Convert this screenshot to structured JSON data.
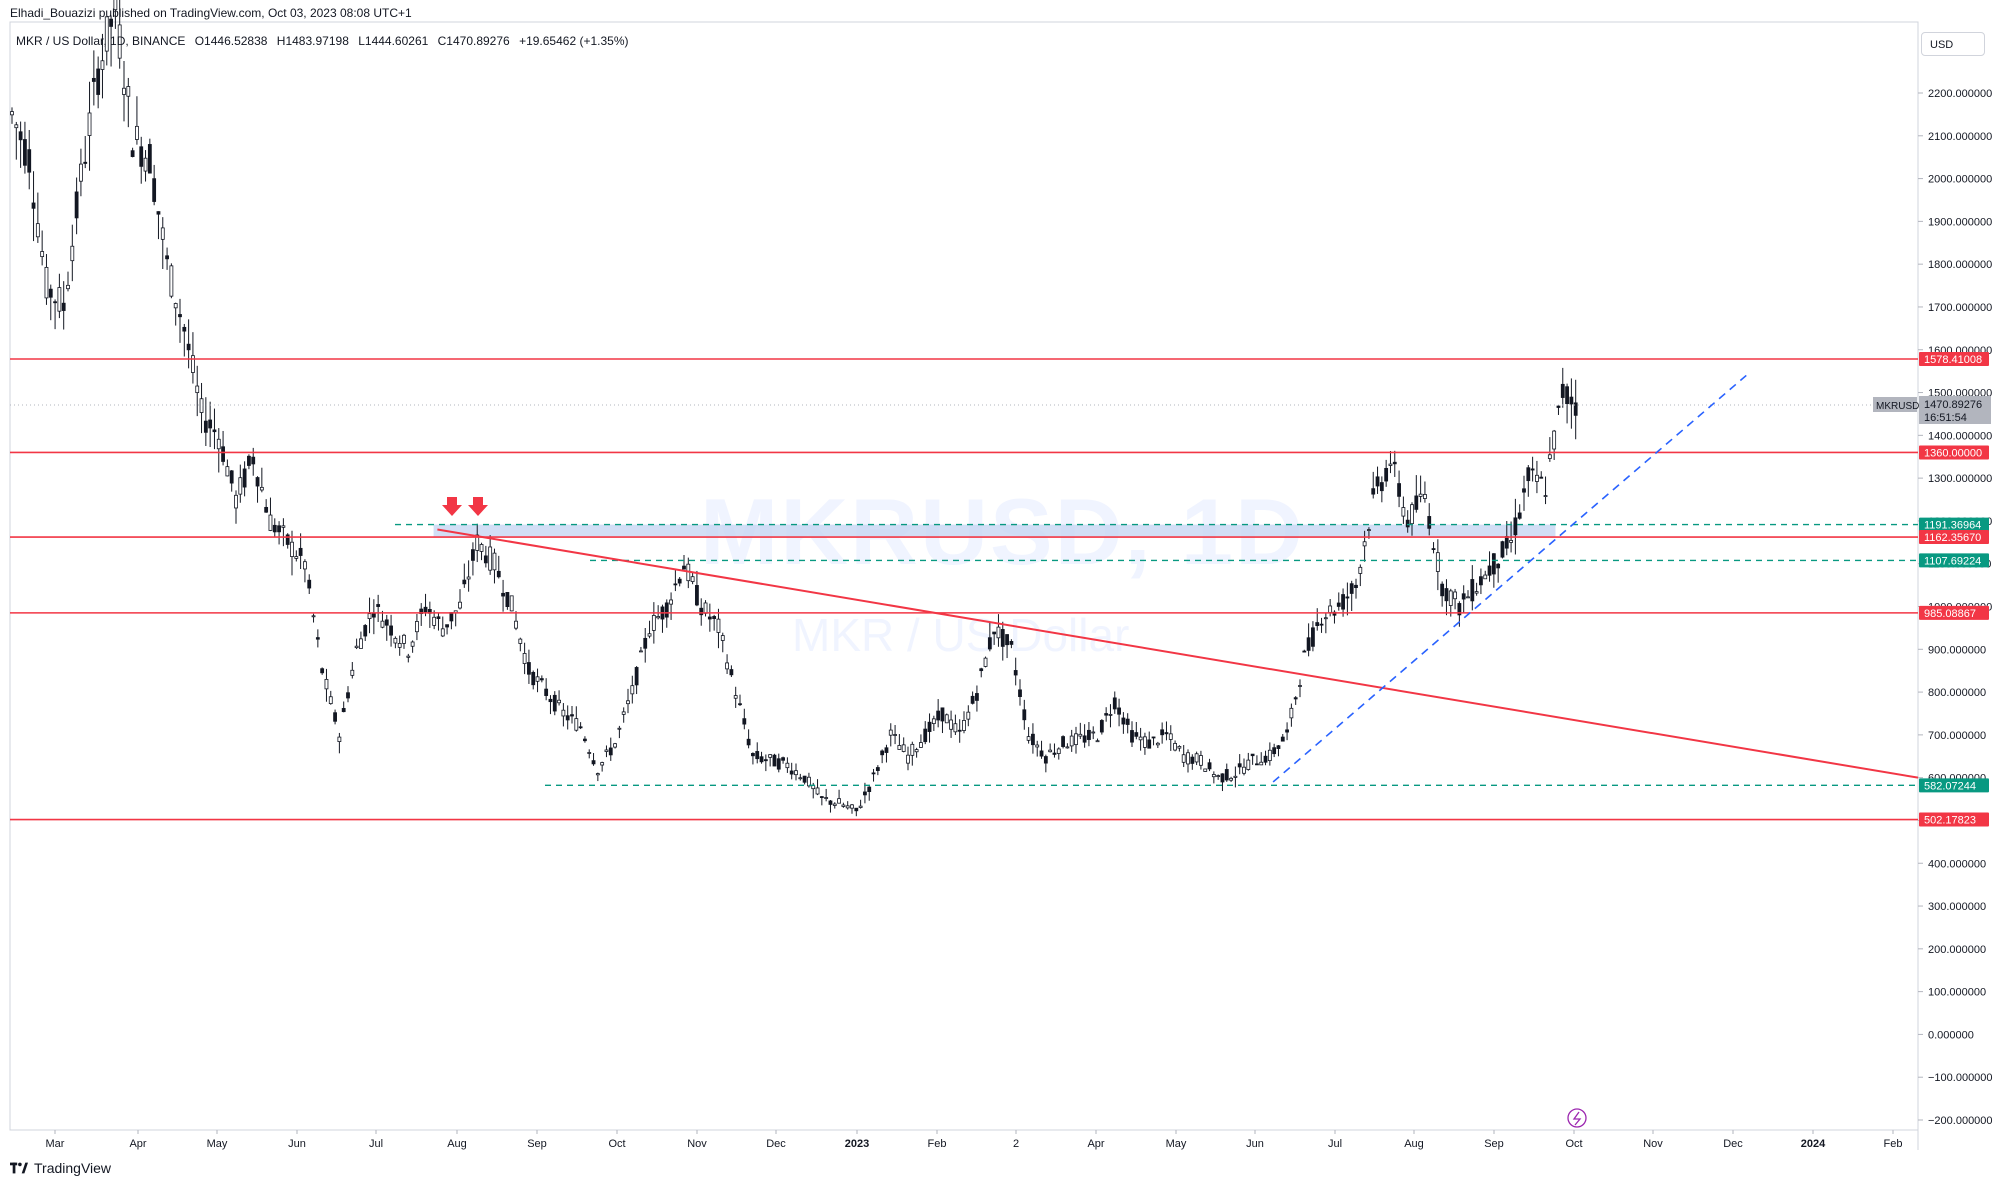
{
  "header": {
    "publish_line": "Elhadi_Bouazizi published on TradingView.com, Oct 03, 2023 08:08 UTC+1"
  },
  "ohlc": {
    "symbol": "MKR / US Dollar, 1D, BINANCE",
    "open": "O1446.52838",
    "high": "H1483.97198",
    "low": "L1444.60261",
    "close": "C1470.89276",
    "change": "+19.65462 (+1.35%)"
  },
  "currency_button": "USD",
  "watermark": {
    "main": "MKRUSD, 1D",
    "sub": "MKR / US Dollar"
  },
  "footer": {
    "brand": "TradingView"
  },
  "colors": {
    "resistance_line": "#f23645",
    "support_dashed": "#089981",
    "trend_dashed": "#2962ff",
    "zone_fill": "#c7d6f3",
    "arrow": "#f23645",
    "axis_text": "#131722"
  },
  "chart_data": {
    "type": "candlestick",
    "symbol": "MKRUSD",
    "interval": "1D",
    "y_axis": {
      "ticks": [
        "2200.000000",
        "2100.000000",
        "2000.000000",
        "1900.000000",
        "1800.000000",
        "1700.000000",
        "1600.000000",
        "1500.000000",
        "1400.000000",
        "1300.000000",
        "1200.000000",
        "1100.000000",
        "1000.000000",
        "900.000000",
        "800.000000",
        "700.000000",
        "600.000000",
        "500.000000",
        "400.000000",
        "300.000000",
        "200.000000",
        "100.000000",
        "0.000000",
        "−100.000000",
        "−200.000000"
      ],
      "tick_values": [
        2200,
        2100,
        2000,
        1900,
        1800,
        1700,
        1600,
        1500,
        1400,
        1300,
        1200,
        1100,
        1000,
        900,
        800,
        700,
        600,
        500,
        400,
        300,
        200,
        100,
        0,
        -100,
        -200
      ],
      "range": [
        -200,
        2400
      ]
    },
    "x_axis": {
      "labels": [
        "Mar",
        "Apr",
        "May",
        "Jun",
        "Jul",
        "Aug",
        "Sep",
        "Oct",
        "Nov",
        "Dec",
        "2023",
        "Feb",
        "2",
        "Apr",
        "May",
        "Jun",
        "Jul",
        "Aug",
        "Sep",
        "Oct",
        "Nov",
        "Dec",
        "2024",
        "Feb"
      ],
      "bold": [
        "2023",
        "2024"
      ]
    },
    "price_levels": [
      {
        "label": "1578.41008",
        "value": 1578.41008,
        "style": "solid",
        "color": "#f23645"
      },
      {
        "label": "1360.00000",
        "value": 1360.0,
        "style": "solid",
        "color": "#f23645"
      },
      {
        "label": "1191.36964",
        "value": 1191.36964,
        "style": "dashed",
        "color": "#089981"
      },
      {
        "label": "1162.35670",
        "value": 1162.3567,
        "style": "solid",
        "color": "#f23645"
      },
      {
        "label": "1107.69224",
        "value": 1107.69224,
        "style": "dashed",
        "color": "#089981"
      },
      {
        "label": "985.08867",
        "value": 985.08867,
        "style": "solid",
        "color": "#f23645"
      },
      {
        "label": "582.07244",
        "value": 582.07244,
        "style": "dashed",
        "color": "#089981"
      },
      {
        "label": "502.17823",
        "value": 502.17823,
        "style": "solid",
        "color": "#f23645"
      }
    ],
    "current_price": {
      "symbol": "MKRUSD",
      "label": "1470.89276",
      "value": 1470.89276,
      "countdown": "16:51:54"
    },
    "close_path": [
      [
        0,
        2150
      ],
      [
        1,
        2050
      ],
      [
        2,
        1750
      ],
      [
        3,
        1700
      ],
      [
        4,
        2000
      ],
      [
        5,
        2250
      ],
      [
        6,
        2400
      ],
      [
        7,
        2100
      ],
      [
        8,
        2050
      ],
      [
        9,
        1800
      ],
      [
        10,
        1650
      ],
      [
        11,
        1450
      ],
      [
        12,
        1400
      ],
      [
        13,
        1250
      ],
      [
        14,
        1350
      ],
      [
        15,
        1200
      ],
      [
        16,
        1150
      ],
      [
        17,
        1100
      ],
      [
        18,
        850
      ],
      [
        19,
        700
      ],
      [
        20,
        900
      ],
      [
        21,
        1000
      ],
      [
        22,
        950
      ],
      [
        23,
        900
      ],
      [
        24,
        1000
      ],
      [
        25,
        950
      ],
      [
        26,
        1000
      ],
      [
        27,
        1150
      ],
      [
        28,
        1100
      ],
      [
        29,
        1000
      ],
      [
        30,
        850
      ],
      [
        31,
        800
      ],
      [
        32,
        750
      ],
      [
        33,
        720
      ],
      [
        34,
        620
      ],
      [
        35,
        680
      ],
      [
        36,
        800
      ],
      [
        37,
        950
      ],
      [
        38,
        1000
      ],
      [
        39,
        1100
      ],
      [
        40,
        1000
      ],
      [
        41,
        950
      ],
      [
        42,
        800
      ],
      [
        43,
        650
      ],
      [
        44,
        640
      ],
      [
        45,
        630
      ],
      [
        46,
        600
      ],
      [
        47,
        550
      ],
      [
        48,
        540
      ],
      [
        49,
        520
      ],
      [
        50,
        600
      ],
      [
        51,
        700
      ],
      [
        52,
        650
      ],
      [
        53,
        700
      ],
      [
        54,
        750
      ],
      [
        55,
        700
      ],
      [
        56,
        800
      ],
      [
        57,
        950
      ],
      [
        58,
        900
      ],
      [
        59,
        700
      ],
      [
        60,
        650
      ],
      [
        61,
        680
      ],
      [
        62,
        690
      ],
      [
        63,
        700
      ],
      [
        64,
        780
      ],
      [
        65,
        700
      ],
      [
        66,
        680
      ],
      [
        67,
        700
      ],
      [
        68,
        650
      ],
      [
        69,
        640
      ],
      [
        70,
        600
      ],
      [
        71,
        610
      ],
      [
        72,
        640
      ],
      [
        73,
        650
      ],
      [
        74,
        700
      ],
      [
        75,
        880
      ],
      [
        76,
        980
      ],
      [
        77,
        1000
      ],
      [
        78,
        1050
      ],
      [
        79,
        1250
      ],
      [
        80,
        1340
      ],
      [
        81,
        1200
      ],
      [
        82,
        1260
      ],
      [
        83,
        1050
      ],
      [
        84,
        1000
      ],
      [
        85,
        1050
      ],
      [
        86,
        1100
      ],
      [
        87,
        1150
      ],
      [
        88,
        1300
      ],
      [
        89,
        1280
      ],
      [
        90,
        1500
      ],
      [
        91,
        1470
      ]
    ],
    "trend_lines": [
      {
        "name": "descending resistance",
        "style": "solid",
        "from": [
          0.224,
          1180
        ],
        "to": [
          1.0,
          600
        ]
      },
      {
        "name": "rising support",
        "style": "dashed",
        "from": [
          0.662,
          590
        ],
        "to": [
          0.91,
          1540
        ]
      }
    ],
    "zone": {
      "from_value": 1162.3567,
      "to_value": 1191.36964,
      "x_from": 0.222,
      "x_to": 0.81
    },
    "markers": [
      {
        "type": "down-arrow",
        "count": 2
      }
    ],
    "grid": false
  }
}
